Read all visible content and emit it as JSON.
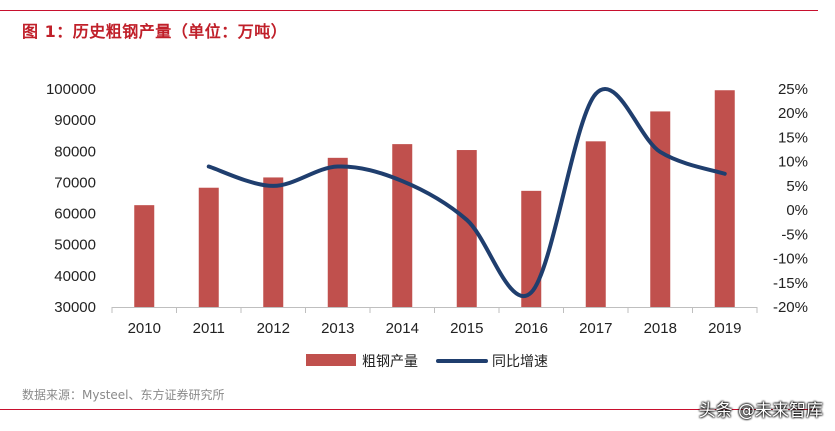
{
  "title": "图 1：历史粗钢产量（单位：万吨）",
  "source": "数据来源：Mysteel、东方证券研究所",
  "watermark": "头条 @未来智库",
  "colors": {
    "accent": "#c8102e",
    "bar": "#c0504d",
    "line": "#1f3e6e"
  },
  "chart_data": {
    "type": "bar",
    "categories": [
      "2010",
      "2011",
      "2012",
      "2013",
      "2014",
      "2015",
      "2016",
      "2017",
      "2018",
      "2019"
    ],
    "series": [
      {
        "name": "粗钢产量",
        "type": "bar",
        "axis": "left",
        "values": [
          62700,
          68300,
          71600,
          77900,
          82300,
          80400,
          67300,
          83200,
          92800,
          99600
        ]
      },
      {
        "name": "同比增速",
        "type": "line",
        "axis": "right",
        "unit": "%",
        "values": [
          null,
          9,
          5,
          9,
          6,
          -2,
          -17,
          24,
          12,
          7.5
        ]
      }
    ],
    "y_left": {
      "min": 30000,
      "max": 100000,
      "step": 10000,
      "ticks": [
        "30000",
        "40000",
        "50000",
        "60000",
        "70000",
        "80000",
        "90000",
        "100000"
      ]
    },
    "y_right": {
      "min": -20,
      "max": 25,
      "step": 5,
      "ticks": [
        "-20%",
        "-15%",
        "-10%",
        "-5%",
        "0%",
        "5%",
        "10%",
        "15%",
        "20%",
        "25%"
      ]
    },
    "grid": false,
    "legend": "bottom"
  }
}
